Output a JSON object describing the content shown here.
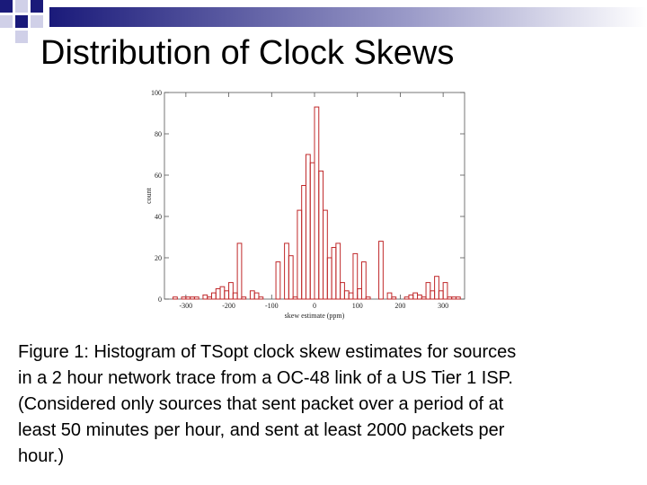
{
  "slide": {
    "title": "Distribution of Clock Skews",
    "caption": [
      "Figure 1: Histogram of TSopt clock skew estimates for sources",
      "in a 2 hour network trace from a OC-48 link of a US Tier 1 ISP.",
      "(Considered only sources that sent packet over a period of at",
      "least 50 minutes per hour, and sent at least 2000 packets per",
      "hour.)"
    ]
  },
  "chart_data": {
    "type": "histogram",
    "x_label": "skew estimate (ppm)",
    "y_label": "count",
    "color": "#c0282a",
    "bins": [
      -350,
      -340,
      -330,
      -320,
      -310,
      -300,
      -290,
      -280,
      -270,
      -260,
      -250,
      -240,
      -230,
      -220,
      -210,
      -200,
      -190,
      -180,
      -170,
      -160,
      -150,
      -140,
      -130,
      -120,
      -110,
      -100,
      -90,
      -80,
      -70,
      -60,
      -50,
      -40,
      -30,
      -20,
      -10,
      0,
      10,
      20,
      30,
      40,
      50,
      60,
      70,
      80,
      90,
      100,
      110,
      120,
      130,
      140,
      150,
      160,
      170,
      180,
      190,
      200,
      210,
      220,
      230,
      240,
      250,
      260,
      270,
      280,
      290,
      300,
      310,
      320,
      330,
      340,
      350
    ],
    "counts": [
      0,
      0,
      1,
      0,
      1,
      1,
      1,
      1,
      0,
      2,
      1,
      3,
      5,
      6,
      4,
      8,
      3,
      27,
      1,
      0,
      4,
      3,
      1,
      0,
      0,
      0,
      18,
      0,
      27,
      21,
      1,
      43,
      55,
      70,
      66,
      93,
      62,
      43,
      20,
      25,
      27,
      8,
      4,
      3,
      22,
      5,
      18,
      1,
      0,
      0,
      28,
      0,
      3,
      1,
      0,
      0,
      1,
      2,
      3,
      2,
      1,
      8,
      4,
      11,
      4,
      8,
      1,
      1,
      1,
      0
    ],
    "xlim": [
      -350,
      350
    ],
    "xticks": [
      -300,
      -200,
      -100,
      0,
      100,
      200,
      300
    ],
    "ylim": [
      0,
      100
    ],
    "yticks": [
      0,
      20,
      40,
      60,
      80,
      100
    ]
  }
}
